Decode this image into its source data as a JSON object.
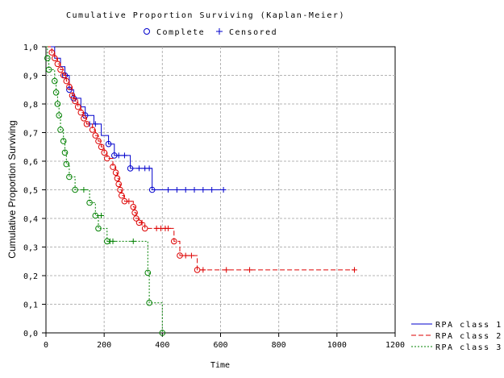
{
  "chart_data": {
    "type": "line",
    "title": "Cumulative Proportion Surviving (Kaplan-Meier)",
    "xlabel": "Time",
    "ylabel": "Cumulative Proportion Surviving",
    "xlim": [
      0,
      1200
    ],
    "ylim": [
      0,
      1
    ],
    "x_ticks": [
      0,
      200,
      400,
      600,
      800,
      1000,
      1200
    ],
    "x_tick_labels": [
      "0",
      "200",
      "400",
      "600",
      "800",
      "1000",
      "1200"
    ],
    "y_ticks": [
      0,
      0.1,
      0.2,
      0.3,
      0.4,
      0.5,
      0.6,
      0.7,
      0.8,
      0.9,
      1.0
    ],
    "y_tick_labels": [
      "0,0",
      "0,1",
      "0,2",
      "0,3",
      "0,4",
      "0,5",
      "0,6",
      "0,7",
      "0,8",
      "0,9",
      "1,0"
    ],
    "grid": true,
    "marker_legend": [
      {
        "label": "Complete",
        "symbol": "circle"
      },
      {
        "label": "Censored",
        "symbol": "plus"
      }
    ],
    "series_legend_position": "bottom-right",
    "series": [
      {
        "name": "RPA class 1",
        "color": "#0000cc",
        "dash": "",
        "steps": [
          [
            0,
            1.0
          ],
          [
            30,
            0.96
          ],
          [
            50,
            0.93
          ],
          [
            65,
            0.9
          ],
          [
            80,
            0.85
          ],
          [
            95,
            0.82
          ],
          [
            120,
            0.79
          ],
          [
            135,
            0.76
          ],
          [
            165,
            0.73
          ],
          [
            190,
            0.69
          ],
          [
            215,
            0.66
          ],
          [
            235,
            0.62
          ],
          [
            290,
            0.575
          ],
          [
            365,
            0.5
          ],
          [
            610,
            0.5
          ]
        ],
        "complete": [
          [
            65,
            0.9
          ],
          [
            80,
            0.85
          ],
          [
            95,
            0.82
          ],
          [
            135,
            0.76
          ],
          [
            215,
            0.66
          ],
          [
            235,
            0.62
          ],
          [
            290,
            0.575
          ],
          [
            365,
            0.5
          ]
        ],
        "censored": [
          [
            150,
            0.73
          ],
          [
            170,
            0.73
          ],
          [
            250,
            0.62
          ],
          [
            270,
            0.62
          ],
          [
            320,
            0.575
          ],
          [
            340,
            0.575
          ],
          [
            355,
            0.575
          ],
          [
            420,
            0.5
          ],
          [
            450,
            0.5
          ],
          [
            480,
            0.5
          ],
          [
            510,
            0.5
          ],
          [
            540,
            0.5
          ],
          [
            570,
            0.5
          ],
          [
            610,
            0.5
          ]
        ]
      },
      {
        "name": "RPA class 2",
        "color": "#dd0000",
        "dash": "6,3",
        "steps": [
          [
            0,
            1.0
          ],
          [
            20,
            0.98
          ],
          [
            30,
            0.96
          ],
          [
            40,
            0.94
          ],
          [
            50,
            0.92
          ],
          [
            60,
            0.9
          ],
          [
            70,
            0.88
          ],
          [
            80,
            0.86
          ],
          [
            90,
            0.83
          ],
          [
            100,
            0.81
          ],
          [
            110,
            0.79
          ],
          [
            120,
            0.77
          ],
          [
            130,
            0.75
          ],
          [
            140,
            0.73
          ],
          [
            160,
            0.71
          ],
          [
            170,
            0.69
          ],
          [
            180,
            0.67
          ],
          [
            190,
            0.65
          ],
          [
            200,
            0.63
          ],
          [
            210,
            0.61
          ],
          [
            230,
            0.58
          ],
          [
            240,
            0.56
          ],
          [
            245,
            0.54
          ],
          [
            250,
            0.52
          ],
          [
            255,
            0.5
          ],
          [
            260,
            0.48
          ],
          [
            270,
            0.46
          ],
          [
            300,
            0.44
          ],
          [
            305,
            0.42
          ],
          [
            310,
            0.4
          ],
          [
            320,
            0.385
          ],
          [
            340,
            0.365
          ],
          [
            370,
            0.365
          ],
          [
            440,
            0.32
          ],
          [
            460,
            0.27
          ],
          [
            520,
            0.22
          ],
          [
            1060,
            0.22
          ]
        ],
        "complete": [
          [
            20,
            0.98
          ],
          [
            30,
            0.96
          ],
          [
            40,
            0.94
          ],
          [
            50,
            0.92
          ],
          [
            60,
            0.9
          ],
          [
            70,
            0.88
          ],
          [
            80,
            0.86
          ],
          [
            90,
            0.83
          ],
          [
            100,
            0.81
          ],
          [
            110,
            0.79
          ],
          [
            120,
            0.77
          ],
          [
            130,
            0.75
          ],
          [
            140,
            0.73
          ],
          [
            160,
            0.71
          ],
          [
            170,
            0.69
          ],
          [
            180,
            0.67
          ],
          [
            190,
            0.65
          ],
          [
            200,
            0.63
          ],
          [
            210,
            0.61
          ],
          [
            230,
            0.58
          ],
          [
            240,
            0.56
          ],
          [
            245,
            0.54
          ],
          [
            250,
            0.52
          ],
          [
            255,
            0.5
          ],
          [
            260,
            0.48
          ],
          [
            270,
            0.46
          ],
          [
            300,
            0.44
          ],
          [
            305,
            0.42
          ],
          [
            310,
            0.4
          ],
          [
            320,
            0.385
          ],
          [
            340,
            0.365
          ],
          [
            440,
            0.32
          ],
          [
            460,
            0.27
          ],
          [
            520,
            0.22
          ]
        ],
        "censored": [
          [
            285,
            0.46
          ],
          [
            330,
            0.385
          ],
          [
            380,
            0.365
          ],
          [
            395,
            0.365
          ],
          [
            410,
            0.365
          ],
          [
            420,
            0.365
          ],
          [
            480,
            0.27
          ],
          [
            500,
            0.27
          ],
          [
            540,
            0.22
          ],
          [
            620,
            0.22
          ],
          [
            700,
            0.22
          ],
          [
            1060,
            0.22
          ]
        ]
      },
      {
        "name": "RPA class 3",
        "color": "#008000",
        "dash": "2,2",
        "steps": [
          [
            0,
            1.0
          ],
          [
            5,
            0.96
          ],
          [
            10,
            0.92
          ],
          [
            30,
            0.88
          ],
          [
            35,
            0.84
          ],
          [
            40,
            0.8
          ],
          [
            45,
            0.76
          ],
          [
            50,
            0.71
          ],
          [
            60,
            0.67
          ],
          [
            65,
            0.63
          ],
          [
            70,
            0.59
          ],
          [
            80,
            0.545
          ],
          [
            100,
            0.5
          ],
          [
            150,
            0.455
          ],
          [
            170,
            0.41
          ],
          [
            180,
            0.365
          ],
          [
            210,
            0.32
          ],
          [
            350,
            0.21
          ],
          [
            355,
            0.105
          ],
          [
            400,
            0.0
          ]
        ],
        "complete": [
          [
            5,
            0.96
          ],
          [
            10,
            0.92
          ],
          [
            30,
            0.88
          ],
          [
            35,
            0.84
          ],
          [
            40,
            0.8
          ],
          [
            45,
            0.76
          ],
          [
            50,
            0.71
          ],
          [
            60,
            0.67
          ],
          [
            65,
            0.63
          ],
          [
            70,
            0.59
          ],
          [
            80,
            0.545
          ],
          [
            100,
            0.5
          ],
          [
            150,
            0.455
          ],
          [
            170,
            0.41
          ],
          [
            180,
            0.365
          ],
          [
            210,
            0.32
          ],
          [
            350,
            0.21
          ],
          [
            355,
            0.105
          ],
          [
            400,
            0.0
          ]
        ],
        "censored": [
          [
            130,
            0.5
          ],
          [
            190,
            0.41
          ],
          [
            220,
            0.32
          ],
          [
            230,
            0.32
          ],
          [
            300,
            0.32
          ]
        ]
      }
    ]
  }
}
